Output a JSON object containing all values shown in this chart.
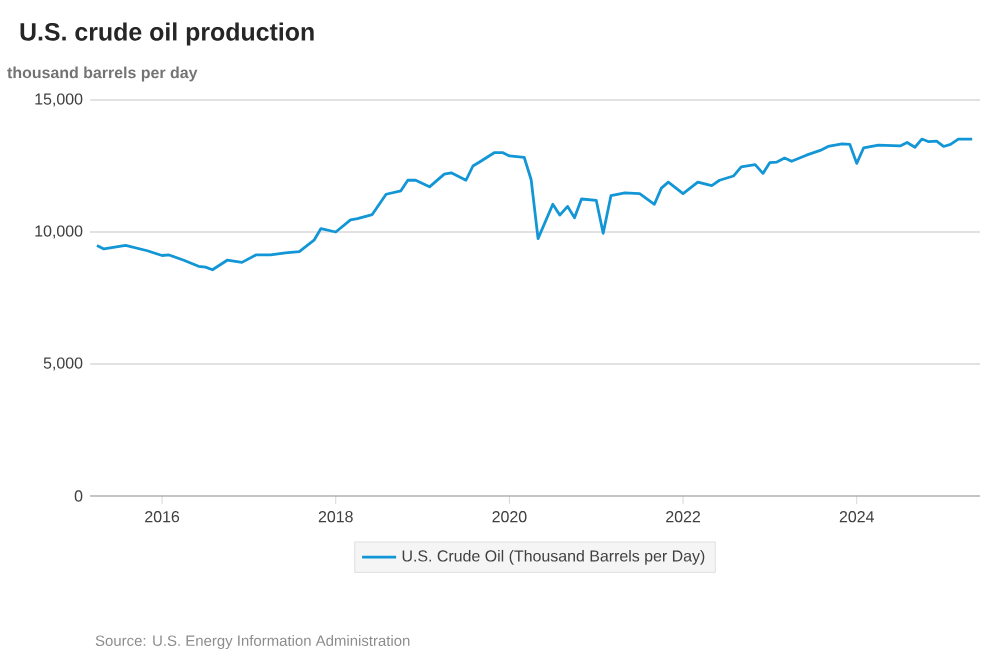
{
  "chart_data": {
    "type": "line",
    "title": "U.S. crude oil production",
    "ylabel": "thousand barrels per day",
    "annotations": [
      "Source: U.S. Energy Information Administration"
    ],
    "x": [
      "2015-04",
      "2015-05",
      "2015-08",
      "2015-11",
      "2016-01",
      "2016-02",
      "2016-04",
      "2016-06",
      "2016-07",
      "2016-08",
      "2016-10",
      "2016-12",
      "2017-02",
      "2017-04",
      "2017-06",
      "2017-08",
      "2017-10",
      "2017-11",
      "2018-01",
      "2018-03",
      "2018-04",
      "2018-06",
      "2018-08",
      "2018-10",
      "2018-11",
      "2018-12",
      "2019-02",
      "2019-04",
      "2019-05",
      "2019-07",
      "2019-08",
      "2019-09",
      "2019-11",
      "2019-12",
      "2020-01",
      "2020-03",
      "2020-04",
      "2020-05",
      "2020-07",
      "2020-08",
      "2020-09",
      "2020-10",
      "2020-11",
      "2021-01",
      "2021-02",
      "2021-03",
      "2021-05",
      "2021-07",
      "2021-09",
      "2021-10",
      "2021-11",
      "2022-01",
      "2022-03",
      "2022-05",
      "2022-06",
      "2022-08",
      "2022-09",
      "2022-11",
      "2022-12",
      "2023-01",
      "2023-02",
      "2023-03",
      "2023-04",
      "2023-06",
      "2023-08",
      "2023-09",
      "2023-11",
      "2023-12",
      "2024-01",
      "2024-02",
      "2024-04",
      "2024-07",
      "2024-08",
      "2024-09",
      "2024-10",
      "2024-11",
      "2024-12",
      "2025-01",
      "2025-02",
      "2025-03",
      "2025-05"
    ],
    "series": [
      {
        "name": "U.S. Crude Oil (Thousand Barrels per Day)",
        "color": "#1396d6",
        "values": [
          9490,
          9360,
          9490,
          9290,
          9110,
          9130,
          8930,
          8700,
          8670,
          8570,
          8930,
          8850,
          9130,
          9130,
          9210,
          9260,
          9690,
          10130,
          10000,
          10460,
          10510,
          10660,
          11430,
          11560,
          11960,
          11960,
          11710,
          12190,
          12240,
          11960,
          12500,
          12680,
          13010,
          13010,
          12880,
          12830,
          11990,
          9750,
          11050,
          10640,
          10970,
          10540,
          11250,
          11200,
          9950,
          11380,
          11480,
          11450,
          11050,
          11660,
          11890,
          11450,
          11890,
          11760,
          11960,
          12120,
          12470,
          12550,
          12220,
          12630,
          12650,
          12800,
          12680,
          12910,
          13090,
          13240,
          13340,
          13320,
          12600,
          13190,
          13290,
          13260,
          13390,
          13210,
          13520,
          13420,
          13440,
          13240,
          13320,
          13520,
          13520
        ]
      }
    ],
    "xlim": [
      "2015-03",
      "2025-06"
    ],
    "xticks": [
      "2016",
      "2018",
      "2020",
      "2022",
      "2024"
    ],
    "ylim": [
      0,
      15000
    ],
    "yticks": [
      0,
      {
        "value": 5000,
        "label": "5,000"
      },
      {
        "value": 10000,
        "label": "10,000"
      },
      {
        "value": 15000,
        "label": "15,000"
      }
    ],
    "grid": "y",
    "legend": "bottom",
    "marker": "none",
    "line_style": "solid"
  }
}
